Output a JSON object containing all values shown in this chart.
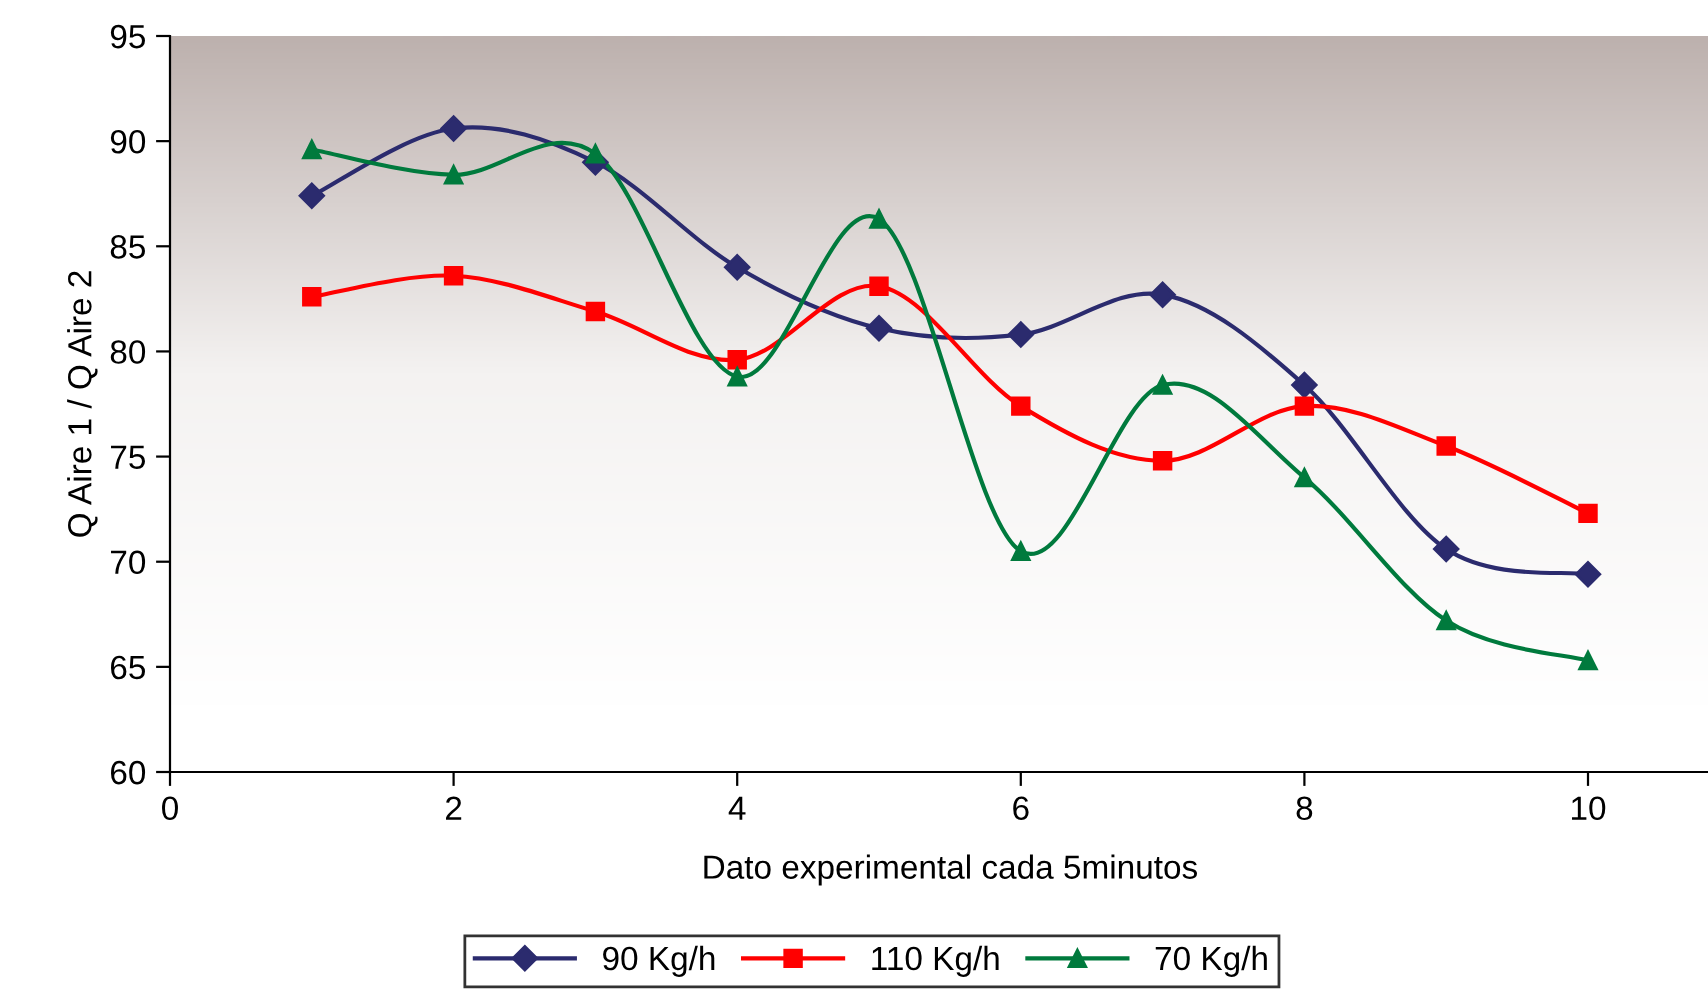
{
  "chart_data": {
    "type": "line",
    "xlabel": "Dato experimental cada 5minutos",
    "ylabel": "Q Aire 1 / Q Aire 2",
    "x": [
      1,
      2,
      3,
      4,
      5,
      6,
      7,
      8,
      9,
      10
    ],
    "series": [
      {
        "name": "90 Kg/h",
        "color": "#2b2b6e",
        "marker": "diamond",
        "values": [
          87.4,
          90.6,
          89.0,
          84.0,
          81.1,
          80.8,
          82.7,
          78.4,
          70.6,
          69.4
        ]
      },
      {
        "name": "110 Kg/h",
        "color": "#ff0000",
        "marker": "square",
        "values": [
          82.6,
          83.6,
          81.9,
          79.6,
          83.1,
          77.4,
          74.8,
          77.4,
          75.5,
          72.3
        ]
      },
      {
        "name": "70 Kg/h",
        "color": "#007a3d",
        "marker": "triangle",
        "values": [
          89.6,
          88.4,
          89.4,
          78.8,
          86.3,
          70.5,
          78.4,
          74.0,
          67.2,
          65.3
        ]
      }
    ],
    "xlim": [
      0,
      11
    ],
    "xticks": [
      0,
      2,
      4,
      6,
      8,
      10
    ],
    "ylim": [
      60,
      95
    ],
    "yticks": [
      60,
      65,
      70,
      75,
      80,
      85,
      90,
      95
    ],
    "grid": false,
    "legend": "bottom",
    "line_style": "solid"
  }
}
